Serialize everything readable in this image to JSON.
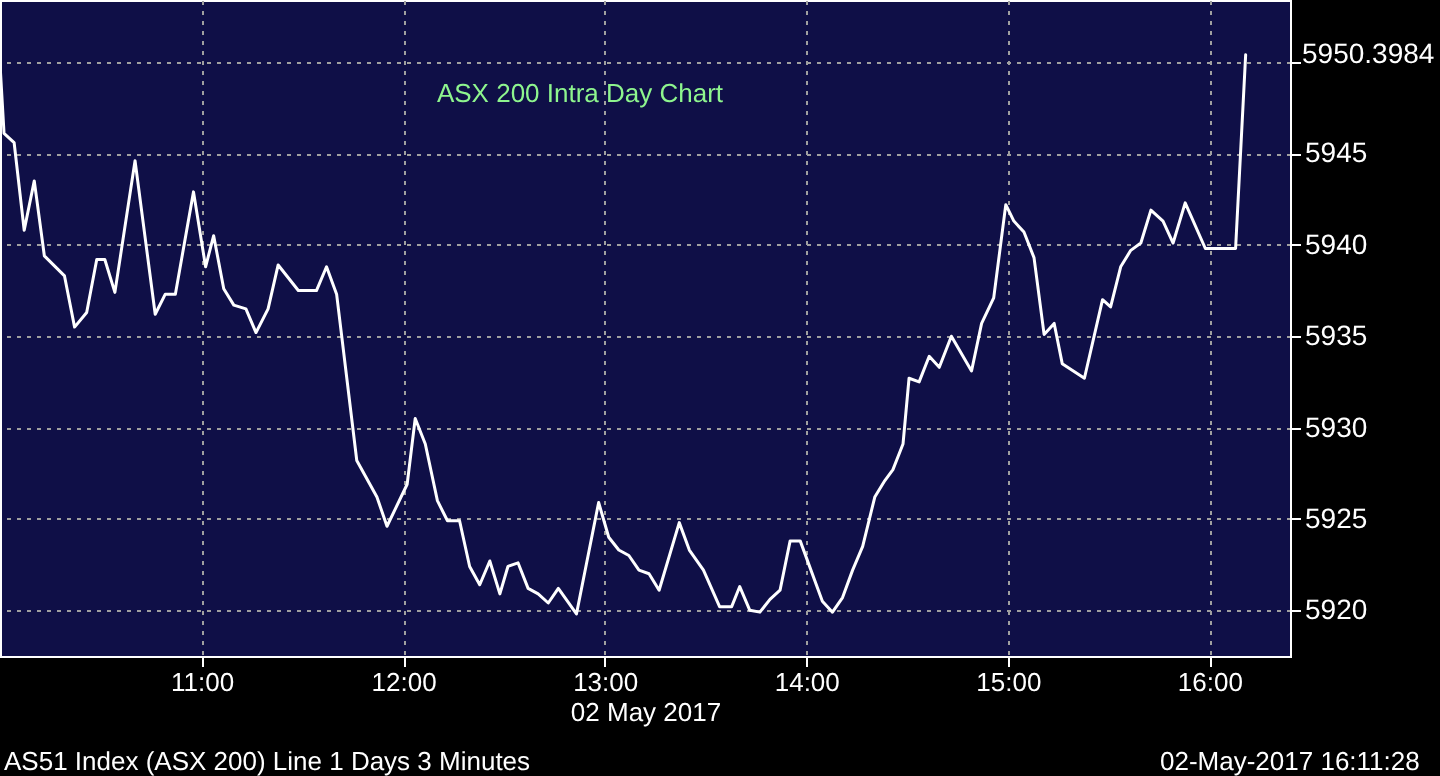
{
  "chart_data": {
    "type": "line",
    "title": "ASX 200 Intra Day Chart",
    "xlabel": "02 May 2017",
    "x": [
      10.0,
      10.02,
      10.07,
      10.12,
      10.17,
      10.22,
      10.32,
      10.37,
      10.43,
      10.48,
      10.52,
      10.57,
      10.67,
      10.77,
      10.82,
      10.87,
      10.96,
      11.02,
      11.06,
      11.11,
      11.16,
      11.22,
      11.27,
      11.33,
      11.38,
      11.48,
      11.57,
      11.62,
      11.67,
      11.77,
      11.87,
      11.92,
      12.02,
      12.06,
      12.11,
      12.17,
      12.22,
      12.28,
      12.33,
      12.38,
      12.43,
      12.48,
      12.52,
      12.57,
      12.62,
      12.67,
      12.72,
      12.77,
      12.86,
      12.97,
      13.02,
      13.07,
      13.12,
      13.17,
      13.22,
      13.27,
      13.37,
      13.42,
      13.49,
      13.57,
      13.63,
      13.67,
      13.72,
      13.77,
      13.82,
      13.87,
      13.92,
      13.97,
      14.08,
      14.13,
      14.18,
      14.23,
      14.28,
      14.34,
      14.39,
      14.43,
      14.48,
      14.51,
      14.56,
      14.61,
      14.66,
      14.72,
      14.82,
      14.87,
      14.93,
      14.99,
      15.03,
      15.08,
      15.13,
      15.18,
      15.23,
      15.27,
      15.38,
      15.47,
      15.51,
      15.56,
      15.61,
      15.66,
      15.71,
      15.77,
      15.82,
      15.88,
      15.98,
      16.13,
      16.18
    ],
    "series": [
      {
        "color": "#ffffff",
        "values": [
          5949.9,
          5946.1,
          5945.6,
          5940.8,
          5943.5,
          5939.4,
          5938.3,
          5935.5,
          5936.3,
          5939.2,
          5939.2,
          5937.4,
          5944.6,
          5936.2,
          5937.3,
          5937.3,
          5942.9,
          5938.8,
          5940.5,
          5937.6,
          5936.7,
          5936.5,
          5935.2,
          5936.5,
          5938.9,
          5937.5,
          5937.5,
          5938.8,
          5937.3,
          5928.2,
          5926.2,
          5924.6,
          5926.9,
          5930.5,
          5929.1,
          5926.0,
          5924.9,
          5924.9,
          5922.4,
          5921.4,
          5922.7,
          5920.9,
          5922.4,
          5922.6,
          5921.2,
          5920.9,
          5920.4,
          5921.2,
          5919.8,
          5925.9,
          5924.0,
          5923.3,
          5923.0,
          5922.2,
          5922.0,
          5921.1,
          5924.8,
          5923.3,
          5922.2,
          5920.2,
          5920.2,
          5921.3,
          5920.0,
          5919.9,
          5920.6,
          5921.1,
          5923.8,
          5923.8,
          5920.5,
          5919.9,
          5920.7,
          5922.2,
          5923.5,
          5926.2,
          5927.1,
          5927.7,
          5929.1,
          5932.7,
          5932.5,
          5933.9,
          5933.3,
          5935.0,
          5933.1,
          5935.7,
          5937.1,
          5942.2,
          5941.3,
          5940.7,
          5939.3,
          5935.1,
          5935.7,
          5933.5,
          5932.7,
          5937.0,
          5936.6,
          5938.8,
          5939.7,
          5940.1,
          5941.9,
          5941.3,
          5940.1,
          5942.3,
          5939.8,
          5939.8,
          5950.4
        ]
      }
    ],
    "xlim": [
      10.0,
      16.4
    ],
    "ylim": [
      5917.5,
      5953.4
    ],
    "xticks": [
      {
        "value": 11,
        "label": "11:00"
      },
      {
        "value": 12,
        "label": "12:00"
      },
      {
        "value": 13,
        "label": "13:00"
      },
      {
        "value": 14,
        "label": "14:00"
      },
      {
        "value": 15,
        "label": "15:00"
      },
      {
        "value": 16,
        "label": "16:00"
      }
    ],
    "yticks": [
      5920,
      5925,
      5930,
      5935,
      5940,
      5945,
      {
        "value": 5950,
        "label": null
      }
    ],
    "grid": true,
    "line_style": "solid",
    "marker": "none",
    "annotations": [
      "5950.3984",
      "AS51 Index (ASX 200) Line 1 Days 3 Minutes",
      "02-May-2017 16:11:28"
    ]
  }
}
